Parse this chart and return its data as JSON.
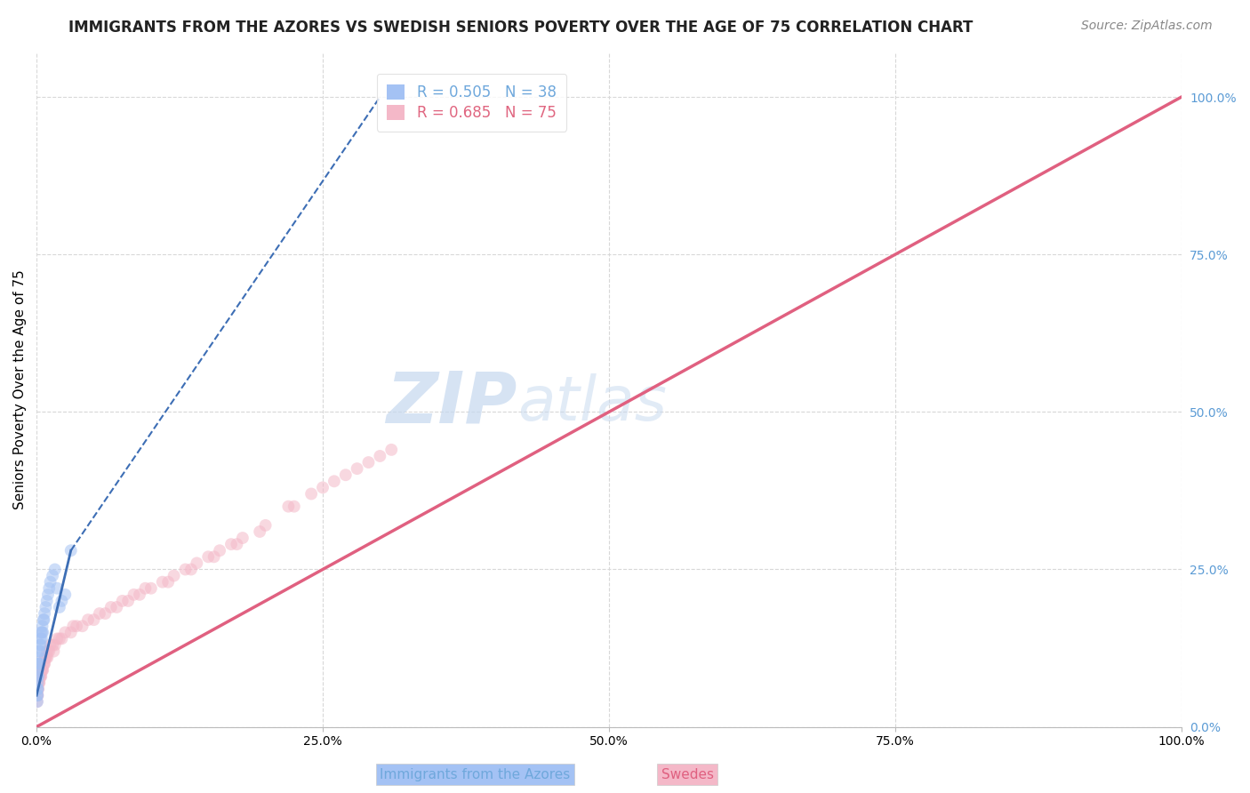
{
  "title": "IMMIGRANTS FROM THE AZORES VS SWEDISH SENIORS POVERTY OVER THE AGE OF 75 CORRELATION CHART",
  "source": "Source: ZipAtlas.com",
  "ylabel": "Seniors Poverty Over the Age of 75",
  "watermark_zip": "ZIP",
  "watermark_atlas": "atlas",
  "legend_entries": [
    {
      "label": "R = 0.505   N = 38",
      "color": "#6fa8dc"
    },
    {
      "label": "R = 0.685   N = 75",
      "color": "#e06680"
    }
  ],
  "blue_scatter_x": [
    0.05,
    0.08,
    0.1,
    0.12,
    0.15,
    0.18,
    0.2,
    0.22,
    0.25,
    0.3,
    0.35,
    0.4,
    0.45,
    0.5,
    0.55,
    0.6,
    0.7,
    0.8,
    0.9,
    1.0,
    1.1,
    1.2,
    1.4,
    1.6,
    1.8,
    2.0,
    2.2,
    2.5,
    3.0,
    0.06,
    0.09,
    0.11,
    0.14,
    0.17,
    0.28,
    0.38,
    0.48,
    0.65
  ],
  "blue_scatter_y": [
    5,
    6,
    7,
    8,
    9,
    10,
    11,
    10,
    12,
    13,
    14,
    15,
    14,
    16,
    15,
    17,
    18,
    19,
    20,
    21,
    22,
    23,
    24,
    25,
    22,
    19,
    20,
    21,
    28,
    4,
    5,
    6,
    8,
    10,
    12,
    13,
    15,
    17
  ],
  "pink_scatter_x": [
    0.05,
    0.08,
    0.1,
    0.12,
    0.15,
    0.18,
    0.2,
    0.25,
    0.3,
    0.35,
    0.4,
    0.45,
    0.5,
    0.55,
    0.6,
    0.65,
    0.7,
    0.75,
    0.8,
    0.85,
    0.9,
    1.0,
    1.1,
    1.2,
    1.4,
    1.6,
    1.8,
    2.0,
    2.5,
    3.0,
    3.5,
    4.0,
    4.5,
    5.0,
    5.5,
    6.0,
    6.5,
    7.0,
    7.5,
    8.0,
    9.0,
    10.0,
    11.0,
    12.0,
    13.0,
    14.0,
    15.0,
    16.0,
    17.0,
    18.0,
    20.0,
    22.0,
    24.0,
    26.0,
    28.0,
    30.0,
    3.2,
    2.2,
    1.5,
    0.95,
    0.42,
    0.38,
    0.28,
    8.5,
    9.5,
    11.5,
    13.5,
    15.5,
    17.5,
    19.5,
    22.5,
    25.0,
    27.0,
    29.0,
    31.0
  ],
  "pink_scatter_y": [
    4,
    5,
    5,
    6,
    6,
    7,
    7,
    7,
    8,
    8,
    8,
    9,
    9,
    9,
    10,
    10,
    10,
    11,
    11,
    11,
    12,
    12,
    12,
    13,
    13,
    13,
    14,
    14,
    15,
    15,
    16,
    16,
    17,
    17,
    18,
    18,
    19,
    19,
    20,
    20,
    21,
    22,
    23,
    24,
    25,
    26,
    27,
    28,
    29,
    30,
    32,
    35,
    37,
    39,
    41,
    43,
    16,
    14,
    12,
    11,
    9,
    10,
    8,
    21,
    22,
    23,
    25,
    27,
    29,
    31,
    35,
    38,
    40,
    42,
    44
  ],
  "blue_solid_line_x": [
    0,
    3.0
  ],
  "blue_solid_line_y": [
    5,
    28
  ],
  "blue_dash_line_x": [
    3.0,
    30.0
  ],
  "blue_dash_line_y": [
    28,
    100
  ],
  "pink_line_x": [
    0,
    100
  ],
  "pink_line_y": [
    0,
    100
  ],
  "xlim_pct": [
    0,
    100
  ],
  "ylim_pct": [
    0,
    107
  ],
  "x_ticks_pct": [
    0,
    25,
    50,
    75,
    100
  ],
  "x_tick_labels": [
    "0.0%",
    "25.0%",
    "50.0%",
    "75.0%",
    "100.0%"
  ],
  "y_ticks_right_pct": [
    0,
    25,
    50,
    75,
    100
  ],
  "y_tick_labels_right": [
    "0.0%",
    "25.0%",
    "50.0%",
    "75.0%",
    "100.0%"
  ],
  "data_x_max": 31,
  "data_y_max": 44,
  "grid_color": "#d8d8d8",
  "blue_color": "#a4c2f4",
  "blue_line_color": "#3d6eb5",
  "pink_color": "#f4b8c8",
  "pink_line_color": "#e06080",
  "scatter_size": 100,
  "scatter_alpha": 0.55,
  "title_fontsize": 12,
  "axis_label_fontsize": 11,
  "tick_label_fontsize": 10,
  "watermark_fontsize_zip": 58,
  "watermark_fontsize_atlas": 50,
  "watermark_color": "#d0dff0",
  "source_fontsize": 10
}
